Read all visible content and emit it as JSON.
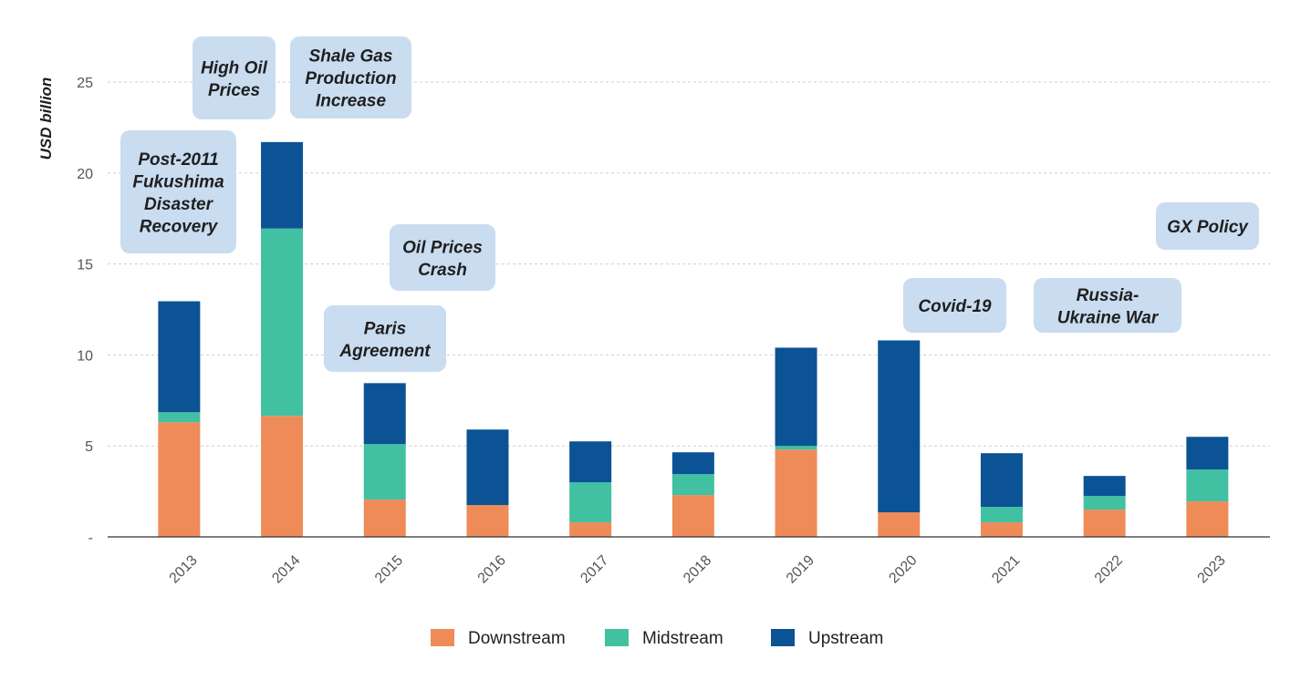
{
  "chart_data": {
    "type": "bar",
    "stacked": true,
    "ylabel": "USD billion",
    "xlabel": "",
    "ylim": [
      0,
      25
    ],
    "y_ticks": [
      {
        "value": 0,
        "label": "-"
      },
      {
        "value": 5,
        "label": "5"
      },
      {
        "value": 10,
        "label": "10"
      },
      {
        "value": 15,
        "label": "15"
      },
      {
        "value": 20,
        "label": "20"
      },
      {
        "value": 25,
        "label": "25"
      }
    ],
    "grid": true,
    "legend_position": "bottom",
    "categories": [
      "2013",
      "2014",
      "2015",
      "2016",
      "2017",
      "2018",
      "2019",
      "2020",
      "2021",
      "2022",
      "2023"
    ],
    "series": [
      {
        "name": "Downstream",
        "color": "#ef8b58",
        "values": [
          6.3,
          6.65,
          2.05,
          1.75,
          0.8,
          2.3,
          4.8,
          1.35,
          0.8,
          1.5,
          1.95
        ]
      },
      {
        "name": "Midstream",
        "color": "#42c0a2",
        "values": [
          0.55,
          10.3,
          3.05,
          0,
          2.2,
          1.15,
          0.2,
          0,
          0.85,
          0.75,
          1.75
        ]
      },
      {
        "name": "Upstream",
        "color": "#0b5394",
        "values": [
          6.1,
          4.75,
          3.35,
          4.15,
          2.25,
          1.2,
          5.4,
          9.45,
          2.95,
          1.1,
          1.8
        ]
      }
    ],
    "annotations": [
      {
        "lines": [
          "Post-2011",
          "Fukushima",
          "Disaster",
          "Recovery"
        ]
      },
      {
        "lines": [
          "High Oil",
          "Prices"
        ]
      },
      {
        "lines": [
          "Shale Gas",
          "Production",
          "Increase"
        ]
      },
      {
        "lines": [
          "Paris",
          "Agreement"
        ]
      },
      {
        "lines": [
          "Oil Prices",
          "Crash"
        ]
      },
      {
        "lines": [
          "Covid-19"
        ]
      },
      {
        "lines": [
          "Russia-",
          "Ukraine War"
        ]
      },
      {
        "lines": [
          "GX Policy"
        ]
      }
    ]
  }
}
